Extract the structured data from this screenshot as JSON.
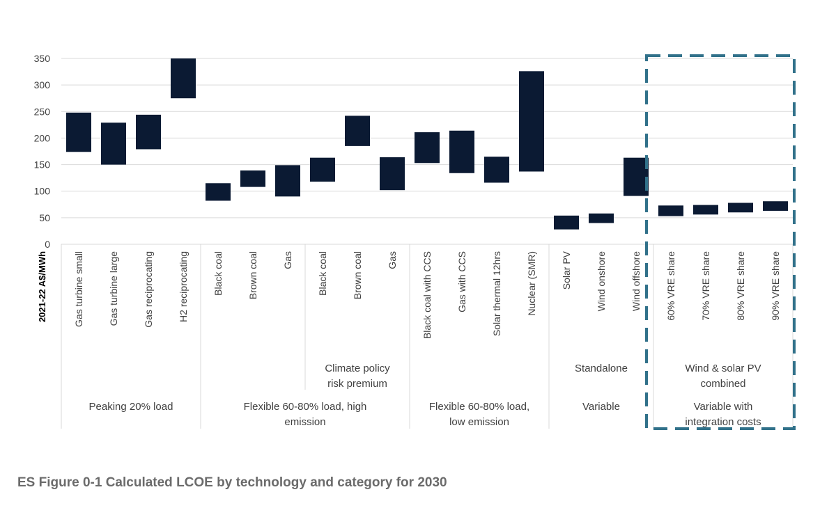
{
  "caption": "ES Figure 0-1 Calculated LCOE by technology and category for 2030",
  "colors": {
    "bar": "#0b1a33",
    "grid": "#d9d9d9",
    "text": "#404040",
    "highlight": "#31718a"
  },
  "chart_data": {
    "type": "bar",
    "subtype": "floating-range",
    "ylabel": "2021-22 A$/MWh",
    "ylim": [
      0,
      350
    ],
    "yticks": [
      0,
      50,
      100,
      150,
      200,
      250,
      300,
      350
    ],
    "grid": true,
    "categories": [
      "Gas turbine small",
      "Gas turbine large",
      "Gas reciprocating",
      "H2 reciprocating",
      "Black coal",
      "Brown coal",
      "Gas",
      "Black coal",
      "Brown coal",
      "Gas",
      "Black coal with CCS",
      "Gas with CCS",
      "Solar thermal 12hrs",
      "Nuclear (SMR)",
      "Solar PV",
      "Wind onshore",
      "Wind offshore",
      "60% VRE share",
      "70% VRE share",
      "80% VRE share",
      "90% VRE share"
    ],
    "ranges": [
      [
        174,
        248
      ],
      [
        150,
        229
      ],
      [
        179,
        244
      ],
      [
        275,
        350
      ],
      [
        82,
        115
      ],
      [
        108,
        139
      ],
      [
        90,
        149
      ],
      [
        118,
        163
      ],
      [
        185,
        242
      ],
      [
        102,
        164
      ],
      [
        153,
        211
      ],
      [
        134,
        214
      ],
      [
        116,
        165
      ],
      [
        137,
        326
      ],
      [
        28,
        54
      ],
      [
        40,
        58
      ],
      [
        91,
        163
      ],
      [
        53,
        73
      ],
      [
        56,
        74
      ],
      [
        60,
        78
      ],
      [
        63,
        81
      ]
    ],
    "subgroups": [
      {
        "label": "Climate policy risk premium",
        "start": 7,
        "end": 9
      },
      {
        "label": "Standalone",
        "start": 14,
        "end": 16
      },
      {
        "label": "Wind & solar PV combined",
        "start": 17,
        "end": 20
      }
    ],
    "groups": [
      {
        "label": "Peaking 20% load",
        "start": 0,
        "end": 3
      },
      {
        "label": "Flexible 60-80% load, high emission",
        "start": 4,
        "end": 9
      },
      {
        "label": "Flexible 60-80% load, low emission",
        "start": 10,
        "end": 13
      },
      {
        "label": "Variable",
        "start": 14,
        "end": 16
      },
      {
        "label": "Variable with integration costs",
        "start": 17,
        "end": 20
      }
    ],
    "highlight": {
      "style": "dashed box",
      "start": 17,
      "end": 20
    }
  }
}
